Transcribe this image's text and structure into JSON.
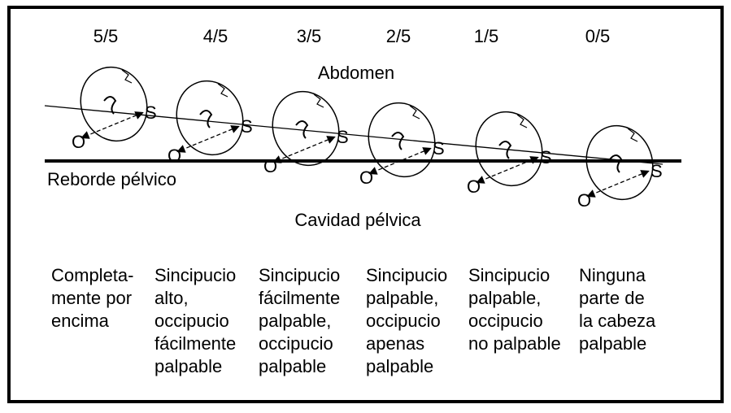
{
  "labels": {
    "abdomen": "Abdomen",
    "pelvic_brim": "Reborde pélvico",
    "pelvic_cavity": "Cavidad pélvica"
  },
  "stages": [
    {
      "fraction": "5/5",
      "occiput": "O",
      "sinciput": "S",
      "description": [
        "Completa-",
        "mente por",
        "encima"
      ]
    },
    {
      "fraction": "4/5",
      "occiput": "O",
      "sinciput": "S",
      "description": [
        "Sincipucio",
        "alto,",
        "occipucio",
        "fácilmente",
        "palpable"
      ]
    },
    {
      "fraction": "3/5",
      "occiput": "O",
      "sinciput": "S",
      "description": [
        "Sincipucio",
        "fácilmente",
        "palpable,",
        "occipucio",
        "palpable"
      ]
    },
    {
      "fraction": "2/5",
      "occiput": "O",
      "sinciput": "S",
      "description": [
        "Sincipucio",
        "palpable,",
        "occipucio",
        "apenas",
        "palpable"
      ]
    },
    {
      "fraction": "1/5",
      "occiput": "O",
      "sinciput": "S",
      "description": [
        "Sincipucio",
        "palpable,",
        "occipucio",
        "no palpable"
      ]
    },
    {
      "fraction": "0/5",
      "occiput": "O",
      "sinciput": "S",
      "description": [
        "Ninguna",
        "parte de",
        "la cabeza",
        "palpable"
      ]
    }
  ]
}
